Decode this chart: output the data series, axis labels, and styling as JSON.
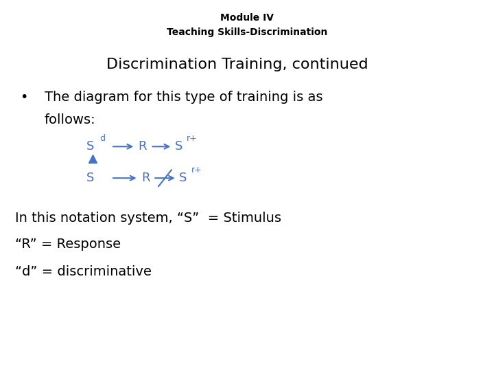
{
  "header_line1": "Module IV",
  "header_line2": "Teaching Skills-Discrimination",
  "title": "Discrimination Training, continued",
  "notation1": "In this notation system, “S”  = Stimulus",
  "notation2": "“R” = Response",
  "notation3": "“d” = discriminative",
  "bg_color": "#ffffff",
  "text_color": "#000000",
  "arrow_color": "#4472c4",
  "header_fontsize": 10,
  "title_fontsize": 16,
  "body_fontsize": 14,
  "diagram_fontsize": 13,
  "diagram_super_fontsize": 9,
  "notation_fontsize": 14
}
